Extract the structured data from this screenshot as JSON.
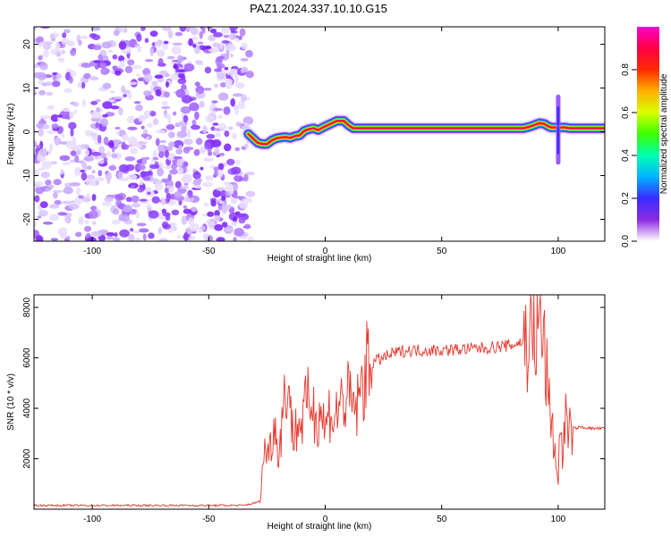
{
  "figure": {
    "title": "PAZ1.2024.337.10.10.G15"
  },
  "chart_data": [
    {
      "type": "heatmap",
      "xlabel": "Height of straight line (km)",
      "ylabel": "Frequency (Hz)",
      "xlim": [
        -125,
        120
      ],
      "ylim": [
        -25,
        24
      ],
      "xticks": [
        -100,
        -50,
        0,
        50,
        100
      ],
      "yticks": [
        -20,
        -10,
        0,
        10,
        20
      ],
      "grid": false,
      "noise_region_x": [
        -125,
        -32
      ],
      "ridge": {
        "x": [
          -33,
          -31,
          -29,
          -27,
          -25,
          -23,
          -21,
          -19,
          -17,
          -15,
          -13,
          -11,
          -9,
          -7,
          -5,
          -3,
          -1,
          1,
          3,
          5,
          8,
          10,
          12,
          15,
          20,
          30,
          40,
          50,
          60,
          70,
          80,
          85,
          88,
          90,
          92,
          94,
          96,
          97,
          99,
          101,
          103,
          105,
          107,
          110,
          115,
          120
        ],
        "freq": [
          -0.5,
          -1.5,
          -2.5,
          -2.8,
          -2.8,
          -2.0,
          -1.5,
          -1.3,
          -1.2,
          -1.4,
          -1.0,
          -0.8,
          0.2,
          0.6,
          0.8,
          0.4,
          1.0,
          1.5,
          2.0,
          2.5,
          2.5,
          1.5,
          0.8,
          0.8,
          0.8,
          0.8,
          0.8,
          0.8,
          0.8,
          0.8,
          0.8,
          0.8,
          1.2,
          1.6,
          2.0,
          1.8,
          1.2,
          1.0,
          1.0,
          1.0,
          1.0,
          0.8,
          0.8,
          0.8,
          0.8,
          0.8
        ]
      },
      "colorbar": {
        "label": "Normalized spectral amplitude",
        "range": [
          0,
          1
        ],
        "ticks": [
          "0.0",
          "0.2",
          "0.4",
          "0.6",
          "0.8"
        ],
        "tick_values": [
          0,
          0.2,
          0.4,
          0.6,
          0.8
        ],
        "colors": [
          "#ffffff",
          "#8b2be2",
          "#3b2bff",
          "#00b4ff",
          "#00ffb4",
          "#3cff00",
          "#d8ff00",
          "#ffb000",
          "#ff2a00",
          "#ff0044",
          "#ff00cc"
        ]
      }
    },
    {
      "type": "line",
      "xlabel": "Height of straight line (km)",
      "ylabel": "SNR (10 * v/v)",
      "xlim": [
        -125,
        120
      ],
      "ylim": [
        0,
        8500
      ],
      "xticks": [
        -100,
        -50,
        0,
        50,
        100
      ],
      "yticks": [
        2000,
        4000,
        6000,
        8000
      ],
      "grid": false,
      "series": [
        {
          "color": "#e8362c",
          "x": [
            -125,
            -100,
            -75,
            -50,
            -35,
            -28,
            -26,
            -24,
            -22,
            -20,
            -18,
            -16,
            -14,
            -12,
            -10,
            -8,
            -6,
            -4,
            -2,
            0,
            2,
            4,
            6,
            8,
            10,
            12,
            14,
            16,
            18,
            20,
            22,
            25,
            30,
            35,
            40,
            50,
            60,
            70,
            75,
            80,
            85,
            88,
            90,
            92,
            94,
            96,
            97,
            98,
            99,
            100,
            101,
            102,
            103,
            104,
            106,
            110,
            115,
            120
          ],
          "y": [
            150,
            150,
            150,
            150,
            150,
            300,
            2500,
            2200,
            3500,
            2200,
            4000,
            5300,
            3000,
            3300,
            3500,
            4100,
            4400,
            3500,
            4100,
            3100,
            4000,
            3500,
            4200,
            4300,
            4400,
            4000,
            4100,
            5000,
            5600,
            5800,
            5900,
            6000,
            6200,
            6300,
            6300,
            6300,
            6350,
            6400,
            6450,
            6500,
            6650,
            6900,
            7000,
            7400,
            6500,
            4100,
            3800,
            2800,
            1800,
            1200,
            3500,
            2000,
            3800,
            3000,
            3200,
            3250,
            3200,
            3200
          ]
        }
      ]
    }
  ]
}
